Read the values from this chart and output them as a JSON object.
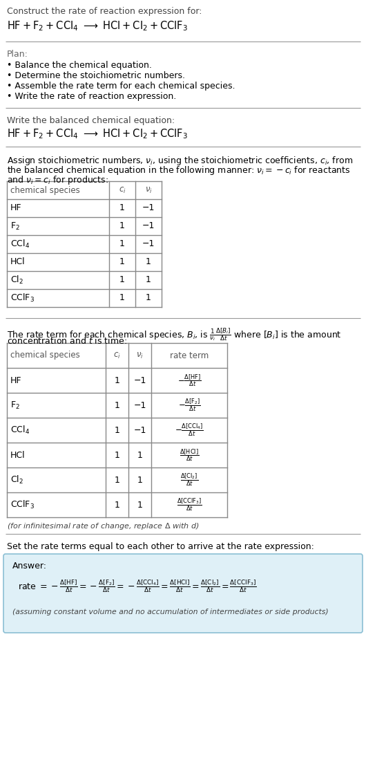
{
  "bg_color": "#ffffff",
  "section1_title": "Construct the rate of reaction expression for:",
  "section2_title": "Plan:",
  "section2_bullets": [
    "• Balance the chemical equation.",
    "• Determine the stoichiometric numbers.",
    "• Assemble the rate term for each chemical species.",
    "• Write the rate of reaction expression."
  ],
  "section3_title": "Write the balanced chemical equation:",
  "section4_intro_1": "Assign stoichiometric numbers, $\\nu_i$, using the stoichiometric coefficients, $c_i$, from",
  "section4_intro_2": "the balanced chemical equation in the following manner: $\\nu_i = -c_i$ for reactants",
  "section4_intro_3": "and $\\nu_i = c_i$ for products:",
  "table1_headers": [
    "chemical species",
    "$c_i$",
    "$\\nu_i$"
  ],
  "table1_rows": [
    [
      "HF",
      "1",
      "−1"
    ],
    [
      "$\\mathrm{F_2}$",
      "1",
      "−1"
    ],
    [
      "$\\mathrm{CCl_4}$",
      "1",
      "−1"
    ],
    [
      "HCl",
      "1",
      "1"
    ],
    [
      "$\\mathrm{Cl_2}$",
      "1",
      "1"
    ],
    [
      "$\\mathrm{CClF_3}$",
      "1",
      "1"
    ]
  ],
  "section5_intro_1": "The rate term for each chemical species, $B_i$, is $\\frac{1}{\\nu_i}\\frac{\\Delta[B_i]}{\\Delta t}$ where $[B_i]$ is the amount",
  "section5_intro_2": "concentration and $t$ is time:",
  "table2_headers": [
    "chemical species",
    "$c_i$",
    "$\\nu_i$",
    "rate term"
  ],
  "table2_rows": [
    [
      "HF",
      "1",
      "−1",
      "$-\\frac{\\Delta[\\mathrm{HF}]}{\\Delta t}$"
    ],
    [
      "$\\mathrm{F_2}$",
      "1",
      "−1",
      "$-\\frac{\\Delta[\\mathrm{F_2}]}{\\Delta t}$"
    ],
    [
      "$\\mathrm{CCl_4}$",
      "1",
      "−1",
      "$-\\frac{\\Delta[\\mathrm{CCl_4}]}{\\Delta t}$"
    ],
    [
      "HCl",
      "1",
      "1",
      "$\\frac{\\Delta[\\mathrm{HCl}]}{\\Delta t}$"
    ],
    [
      "$\\mathrm{Cl_2}$",
      "1",
      "1",
      "$\\frac{\\Delta[\\mathrm{Cl_2}]}{\\Delta t}$"
    ],
    [
      "$\\mathrm{CClF_3}$",
      "1",
      "1",
      "$\\frac{\\Delta[\\mathrm{CClF_3}]}{\\Delta t}$"
    ]
  ],
  "infinitesimal_note": "(for infinitesimal rate of change, replace $\\Delta$ with $d$)",
  "section6_intro": "Set the rate terms equal to each other to arrive at the rate expression:",
  "answer_box_color": "#dff0f7",
  "answer_box_border": "#8bbfd4",
  "answer_label": "Answer:",
  "answer_footnote": "(assuming constant volume and no accumulation of intermediates or side products)"
}
